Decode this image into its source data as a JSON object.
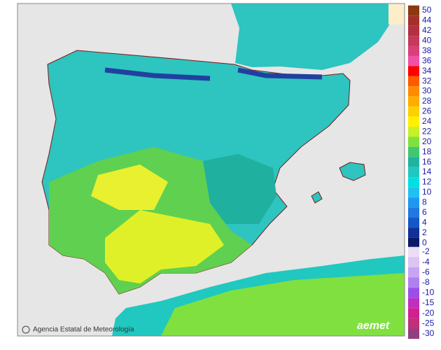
{
  "legend": {
    "groups": [
      {
        "items": [
          {
            "label": 50,
            "color": "#8b3a10"
          },
          {
            "label": 44,
            "color": "#a3302a"
          },
          {
            "label": 42,
            "color": "#b43040"
          },
          {
            "label": 40,
            "color": "#c43a58"
          },
          {
            "label": 38,
            "color": "#d8407a"
          },
          {
            "label": 36,
            "color": "#f050a8"
          },
          {
            "label": 34,
            "color": "#ff0000"
          },
          {
            "label": 32,
            "color": "#ff5a00"
          },
          {
            "label": 30,
            "color": "#ff8c00"
          },
          {
            "label": 28,
            "color": "#ffae00"
          },
          {
            "label": 26,
            "color": "#ffd000"
          },
          {
            "label": 24,
            "color": "#fff000"
          },
          {
            "label": 22,
            "color": "#c8f028"
          },
          {
            "label": 20,
            "color": "#80e040"
          },
          {
            "label": 18,
            "color": "#40c870"
          },
          {
            "label": 16,
            "color": "#20b4a0"
          },
          {
            "label": 14,
            "color": "#20c8c0"
          },
          {
            "label": 12,
            "color": "#00e0e0"
          },
          {
            "label": 10,
            "color": "#20c0f0"
          },
          {
            "label": 8,
            "color": "#2098f0"
          },
          {
            "label": 6,
            "color": "#2078e0"
          },
          {
            "label": 4,
            "color": "#1458c8"
          },
          {
            "label": 2,
            "color": "#12309a"
          },
          {
            "label": 0,
            "color": "#0a1868"
          }
        ]
      },
      {
        "items": [
          {
            "label": -2,
            "color": "#ecdcf6"
          },
          {
            "label": -4,
            "color": "#dcc4f4"
          },
          {
            "label": -6,
            "color": "#c8a4f2"
          },
          {
            "label": -8,
            "color": "#b080f0"
          },
          {
            "label": -10,
            "color": "#9850e8"
          },
          {
            "label": -15,
            "color": "#c030c0"
          },
          {
            "label": -20,
            "color": "#d02090"
          },
          {
            "label": -25,
            "color": "#c0307a"
          },
          {
            "label": -30,
            "color": "#904080"
          }
        ]
      }
    ]
  },
  "credit": "Agencia Estatal de Meteorología",
  "logo": "aemet"
}
